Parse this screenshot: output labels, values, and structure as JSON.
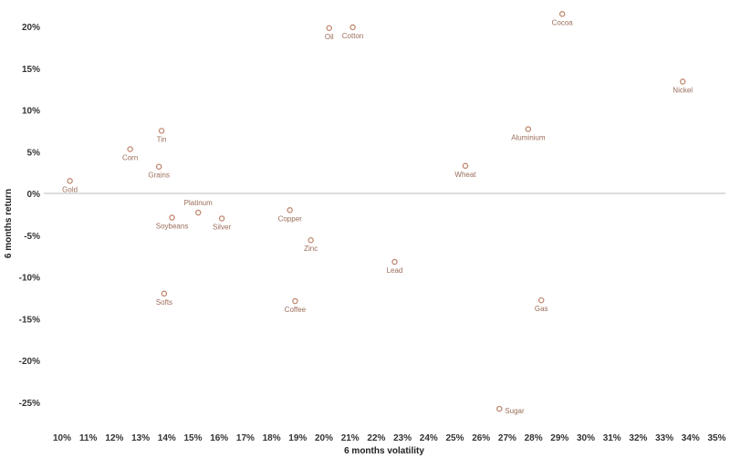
{
  "chart_data": {
    "type": "scatter",
    "xlabel": "6 months volatility",
    "ylabel": "6 months return",
    "x_ticks": [
      "10%",
      "11%",
      "12%",
      "13%",
      "14%",
      "15%",
      "16%",
      "17%",
      "18%",
      "19%",
      "20%",
      "21%",
      "22%",
      "23%",
      "24%",
      "25%",
      "26%",
      "27%",
      "28%",
      "29%",
      "30%",
      "31%",
      "32%",
      "33%",
      "34%",
      "35%"
    ],
    "y_ticks": [
      "20%",
      "15%",
      "10%",
      "5%",
      "0%",
      "-5%",
      "-10%",
      "-15%",
      "-20%",
      "-25%"
    ],
    "xlim": [
      9.5,
      35.5
    ],
    "ylim": [
      -28.5,
      22
    ],
    "zero_line": true,
    "grid": false,
    "colors": {
      "marker": "#c08a72",
      "label": "#9b6d5a",
      "zero_line": "#bbbbbb"
    },
    "points": [
      {
        "name": "Gold",
        "x": 10.3,
        "y": 1.5,
        "label_pos": "below"
      },
      {
        "name": "Corn",
        "x": 12.6,
        "y": 5.3,
        "label_pos": "below"
      },
      {
        "name": "Tin",
        "x": 13.8,
        "y": 7.5,
        "label_pos": "below"
      },
      {
        "name": "Grains",
        "x": 13.7,
        "y": 3.2,
        "label_pos": "below"
      },
      {
        "name": "Platinum",
        "x": 15.2,
        "y": -2.3,
        "label_pos": "above"
      },
      {
        "name": "Soybeans",
        "x": 14.2,
        "y": -2.9,
        "label_pos": "below"
      },
      {
        "name": "Silver",
        "x": 16.1,
        "y": -3.0,
        "label_pos": "below"
      },
      {
        "name": "Softs",
        "x": 13.9,
        "y": -12.0,
        "label_pos": "below"
      },
      {
        "name": "Copper",
        "x": 18.7,
        "y": -2.0,
        "label_pos": "below"
      },
      {
        "name": "Zinc",
        "x": 19.5,
        "y": -5.6,
        "label_pos": "below"
      },
      {
        "name": "Coffee",
        "x": 18.9,
        "y": -12.9,
        "label_pos": "below"
      },
      {
        "name": "Oil",
        "x": 20.2,
        "y": 19.8,
        "label_pos": "below"
      },
      {
        "name": "Cotton",
        "x": 21.1,
        "y": 19.9,
        "label_pos": "below"
      },
      {
        "name": "Lead",
        "x": 22.7,
        "y": -8.2,
        "label_pos": "below"
      },
      {
        "name": "Wheat",
        "x": 25.4,
        "y": 3.3,
        "label_pos": "below"
      },
      {
        "name": "Sugar",
        "x": 26.7,
        "y": -25.8,
        "label_pos": "right"
      },
      {
        "name": "Aluminium",
        "x": 27.8,
        "y": 7.7,
        "label_pos": "below"
      },
      {
        "name": "Gas",
        "x": 28.3,
        "y": -12.8,
        "label_pos": "below"
      },
      {
        "name": "Cocoa",
        "x": 29.1,
        "y": 21.5,
        "label_pos": "below"
      },
      {
        "name": "Nickel",
        "x": 33.7,
        "y": 13.4,
        "label_pos": "below"
      }
    ]
  }
}
